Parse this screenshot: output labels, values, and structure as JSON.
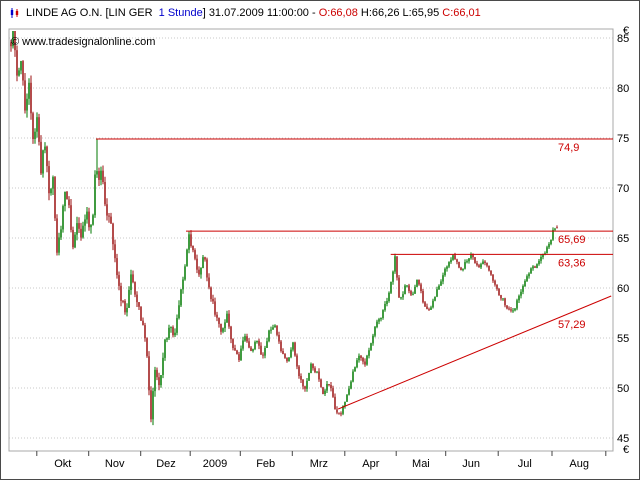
{
  "header": {
    "icon": "candlestick-chart-icon",
    "symbol": "LINDE AG O.N. [LIN GER  ",
    "interval": "1 Stunde",
    "after_interval": "] 31.07.2009 11:00:00 - ",
    "open": "O:66,08 ",
    "high": "H:66,26 ",
    "low": "L:65,95 ",
    "close": "C:66,01"
  },
  "watermark": "© www.tradesignalonline.com",
  "chart_data": {
    "type": "candlestick",
    "title": "LINDE AG O.N. [LIN GER 1 Stunde]",
    "y_unit": "€",
    "ylim": [
      45,
      85
    ],
    "y_ticks": [
      85,
      80,
      75,
      70,
      65,
      60,
      55,
      50,
      45
    ],
    "x_labels": [
      [
        "Okt",
        0.089
      ],
      [
        "Nov",
        0.175
      ],
      [
        "Dez",
        0.26
      ],
      [
        "2009",
        0.341
      ],
      [
        "Feb",
        0.425
      ],
      [
        "Mrz",
        0.513
      ],
      [
        "Apr",
        0.599
      ],
      [
        "Mai",
        0.682
      ],
      [
        "Jun",
        0.765
      ],
      [
        "Jul",
        0.854
      ],
      [
        "Aug",
        0.944
      ]
    ],
    "x_boundaries_t": [
      0.046,
      0.132,
      0.218,
      0.3,
      0.383,
      0.469,
      0.556,
      0.641,
      0.723,
      0.81,
      0.899,
      0.988
    ],
    "last_quote": {
      "datetime": "31.07.2009 11:00:00",
      "open": 66.08,
      "high": 66.26,
      "low": 65.95,
      "close": 66.01
    },
    "levels": [
      {
        "value": 74.9,
        "label": "74,9",
        "t_start": 0.144
      },
      {
        "value": 65.69,
        "label": "65,69",
        "t_start": 0.293
      },
      {
        "value": 63.36,
        "label": "63,36",
        "t_start": 0.632
      }
    ],
    "trendline": {
      "label": "57,29",
      "points": [
        [
          0.545,
          47.9
        ],
        [
          0.997,
          59.2
        ]
      ]
    },
    "price_path": [
      [
        0.003,
        84.8
      ],
      [
        0.008,
        85.2
      ],
      [
        0.013,
        81.0
      ],
      [
        0.02,
        83.0
      ],
      [
        0.026,
        78.0
      ],
      [
        0.033,
        80.0
      ],
      [
        0.04,
        74.5
      ],
      [
        0.046,
        77.0
      ],
      [
        0.053,
        72.0
      ],
      [
        0.06,
        74.5
      ],
      [
        0.066,
        69.5
      ],
      [
        0.073,
        71.5
      ],
      [
        0.079,
        63.5
      ],
      [
        0.086,
        65.5
      ],
      [
        0.093,
        70.0
      ],
      [
        0.099,
        68.0
      ],
      [
        0.106,
        64.0
      ],
      [
        0.113,
        66.5
      ],
      [
        0.119,
        64.5
      ],
      [
        0.127,
        67.5
      ],
      [
        0.136,
        66.0
      ],
      [
        0.141,
        68.5
      ],
      [
        0.144,
        74.3
      ],
      [
        0.147,
        70.5
      ],
      [
        0.152,
        71.5
      ],
      [
        0.161,
        68.0
      ],
      [
        0.169,
        66.0
      ],
      [
        0.177,
        62.0
      ],
      [
        0.185,
        59.0
      ],
      [
        0.194,
        57.5
      ],
      [
        0.202,
        61.5
      ],
      [
        0.21,
        59.0
      ],
      [
        0.219,
        57.0
      ],
      [
        0.227,
        54.5
      ],
      [
        0.235,
        46.8
      ],
      [
        0.242,
        52.5
      ],
      [
        0.248,
        50.0
      ],
      [
        0.257,
        54.0
      ],
      [
        0.265,
        56.5
      ],
      [
        0.273,
        55.0
      ],
      [
        0.281,
        58.5
      ],
      [
        0.29,
        61.0
      ],
      [
        0.298,
        65.4
      ],
      [
        0.306,
        63.0
      ],
      [
        0.315,
        61.5
      ],
      [
        0.323,
        63.5
      ],
      [
        0.331,
        60.0
      ],
      [
        0.341,
        57.5
      ],
      [
        0.351,
        55.5
      ],
      [
        0.361,
        57.5
      ],
      [
        0.371,
        54.0
      ],
      [
        0.381,
        53.0
      ],
      [
        0.391,
        55.5
      ],
      [
        0.401,
        53.5
      ],
      [
        0.411,
        55.0
      ],
      [
        0.42,
        53.0
      ],
      [
        0.43,
        55.5
      ],
      [
        0.44,
        56.5
      ],
      [
        0.45,
        54.0
      ],
      [
        0.46,
        52.5
      ],
      [
        0.47,
        54.5
      ],
      [
        0.48,
        51.0
      ],
      [
        0.49,
        50.0
      ],
      [
        0.5,
        52.5
      ],
      [
        0.51,
        51.5
      ],
      [
        0.52,
        49.5
      ],
      [
        0.53,
        50.5
      ],
      [
        0.54,
        48.0
      ],
      [
        0.55,
        47.3
      ],
      [
        0.56,
        49.5
      ],
      [
        0.57,
        51.5
      ],
      [
        0.579,
        53.5
      ],
      [
        0.589,
        52.5
      ],
      [
        0.599,
        54.5
      ],
      [
        0.609,
        56.5
      ],
      [
        0.619,
        57.5
      ],
      [
        0.629,
        59.5
      ],
      [
        0.639,
        63.0
      ],
      [
        0.647,
        58.5
      ],
      [
        0.657,
        60.5
      ],
      [
        0.667,
        59.0
      ],
      [
        0.677,
        61.0
      ],
      [
        0.687,
        58.0
      ],
      [
        0.697,
        57.6
      ],
      [
        0.707,
        59.5
      ],
      [
        0.717,
        61.0
      ],
      [
        0.727,
        62.5
      ],
      [
        0.737,
        63.2
      ],
      [
        0.747,
        61.5
      ],
      [
        0.757,
        62.8
      ],
      [
        0.767,
        63.2
      ],
      [
        0.777,
        62.0
      ],
      [
        0.786,
        63.0
      ],
      [
        0.796,
        61.5
      ],
      [
        0.806,
        60.0
      ],
      [
        0.816,
        59.0
      ],
      [
        0.826,
        58.0
      ],
      [
        0.836,
        57.6
      ],
      [
        0.846,
        59.5
      ],
      [
        0.856,
        61.0
      ],
      [
        0.866,
        62.0
      ],
      [
        0.876,
        62.5
      ],
      [
        0.886,
        63.5
      ],
      [
        0.894,
        64.5
      ],
      [
        0.901,
        65.7
      ],
      [
        0.907,
        66.0
      ]
    ],
    "volatility_path": [
      [
        0.0,
        1.5
      ],
      [
        0.08,
        1.3
      ],
      [
        0.15,
        1.2
      ],
      [
        0.2,
        1.0
      ],
      [
        0.24,
        1.1
      ],
      [
        0.3,
        0.9
      ],
      [
        0.35,
        0.75
      ],
      [
        0.45,
        0.6
      ],
      [
        0.55,
        0.6
      ],
      [
        0.65,
        0.55
      ],
      [
        0.75,
        0.5
      ],
      [
        0.85,
        0.5
      ],
      [
        0.91,
        0.55
      ]
    ],
    "colors": {
      "up": "#007a00",
      "down": "#9b1111",
      "level": "#cc0000",
      "grid": "#c9c9c9",
      "axis_text": "#000000"
    }
  }
}
